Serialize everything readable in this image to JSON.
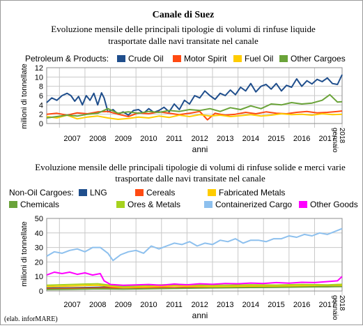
{
  "title": "Canale di Suez",
  "chart_data": [
    {
      "type": "line",
      "subtitle_lines": [
        "Evoluzione mensile delle principali tipologie di volumi di rinfuse liquide",
        "trasportate dalle navi transitate nel canale"
      ],
      "legend_title": "Petroleum & Products:",
      "xlabel": "anni",
      "ylabel": "milioni di tonnellate",
      "ylim": [
        0,
        12
      ],
      "yticks": [
        0,
        2,
        4,
        6,
        8,
        10,
        12
      ],
      "xlim": [
        2006.5,
        2018.08
      ],
      "year_ticks": [
        "2007",
        "2008",
        "2009",
        "2010",
        "2011",
        "2012",
        "2013",
        "2014",
        "2015",
        "2016",
        "2017"
      ],
      "last_tick": [
        "2018",
        "gennaio"
      ],
      "grid": true,
      "legend_position": "top",
      "series": [
        {
          "name": "Crude Oil",
          "color": "#1f4e8c",
          "x": [
            2006.5,
            2006.7,
            2006.9,
            2007.1,
            2007.3,
            2007.45,
            2007.6,
            2007.75,
            2007.9,
            2008.05,
            2008.2,
            2008.35,
            2008.5,
            2008.65,
            2008.75,
            2008.9,
            2009.1,
            2009.3,
            2009.5,
            2009.7,
            2009.9,
            2010.1,
            2010.3,
            2010.5,
            2010.7,
            2010.9,
            2011.1,
            2011.3,
            2011.5,
            2011.7,
            2011.9,
            2012.1,
            2012.3,
            2012.5,
            2012.7,
            2012.9,
            2013.1,
            2013.3,
            2013.5,
            2013.7,
            2013.9,
            2014.1,
            2014.3,
            2014.5,
            2014.7,
            2014.9,
            2015.1,
            2015.3,
            2015.5,
            2015.7,
            2015.9,
            2016.1,
            2016.3,
            2016.5,
            2016.7,
            2016.9,
            2017.1,
            2017.3,
            2017.5,
            2017.7,
            2017.9,
            2018.08
          ],
          "values": [
            4.5,
            5.5,
            5,
            6,
            6.5,
            6,
            4.8,
            5.8,
            4,
            6,
            5,
            6.5,
            4,
            6.6,
            5.5,
            2.5,
            3,
            2,
            2.5,
            1.8,
            2.8,
            3,
            2.2,
            3.2,
            2.4,
            2.8,
            3.5,
            2.5,
            4.2,
            3,
            5,
            4.2,
            6,
            5.5,
            7,
            6,
            5.2,
            6.5,
            6,
            7.2,
            6.2,
            7.8,
            7,
            8.6,
            6.8,
            8,
            8.4,
            7.4,
            8.6,
            7,
            8.2,
            7.8,
            9.6,
            8,
            9.2,
            8.5,
            9.5,
            9,
            9.8,
            8.6,
            8.4,
            10.5
          ]
        },
        {
          "name": "Motor Spirit",
          "color": "#ff4a12",
          "x": [
            2006.5,
            2006.9,
            2007.3,
            2007.7,
            2008.1,
            2008.5,
            2008.9,
            2009.3,
            2009.7,
            2010.1,
            2010.5,
            2010.9,
            2011.3,
            2011.7,
            2012.1,
            2012.5,
            2012.8,
            2013.1,
            2013.5,
            2013.9,
            2014.3,
            2014.7,
            2015.1,
            2015.5,
            2015.9,
            2016.3,
            2016.7,
            2017.1,
            2017.5,
            2017.9,
            2018.08
          ],
          "values": [
            2,
            2.2,
            1.8,
            2.3,
            2.1,
            2.5,
            2.6,
            2,
            1.5,
            2.3,
            2.1,
            2.5,
            2.2,
            1.9,
            2.2,
            2.6,
            0.8,
            2.2,
            1.8,
            2,
            2.4,
            2.1,
            2.5,
            2.2,
            2.1,
            2.4,
            2.6,
            2.3,
            2.4,
            2.6,
            2.7
          ]
        },
        {
          "name": "Fuel Oil",
          "color": "#ffcc00",
          "x": [
            2006.5,
            2006.9,
            2007.3,
            2007.7,
            2008.1,
            2008.5,
            2008.9,
            2009.3,
            2009.7,
            2010.1,
            2010.5,
            2010.9,
            2011.3,
            2011.7,
            2012.1,
            2012.5,
            2012.9,
            2013.3,
            2013.7,
            2014.1,
            2014.5,
            2014.9,
            2015.3,
            2015.7,
            2016.1,
            2016.5,
            2016.9,
            2017.3,
            2017.7,
            2018.08
          ],
          "values": [
            1.5,
            1.2,
            1.8,
            1,
            1.4,
            1.6,
            1.2,
            0.9,
            1.1,
            1.4,
            1.2,
            1.6,
            1.3,
            1.8,
            1.5,
            1.9,
            1.6,
            1.8,
            1.5,
            1.7,
            1.9,
            1.6,
            1.8,
            2.1,
            1.9,
            2,
            1.8,
            2.1,
            1.9,
            2
          ]
        },
        {
          "name": "Other Cargoes",
          "color": "#6aa339",
          "x": [
            2006.5,
            2006.9,
            2007.3,
            2007.7,
            2008.1,
            2008.5,
            2008.9,
            2009.3,
            2009.7,
            2010.1,
            2010.5,
            2010.9,
            2011.3,
            2011.7,
            2012.1,
            2012.5,
            2012.9,
            2013.3,
            2013.7,
            2014.1,
            2014.5,
            2014.9,
            2015.3,
            2015.7,
            2016.1,
            2016.5,
            2016.9,
            2017.3,
            2017.6,
            2017.9,
            2018.08
          ],
          "values": [
            1.2,
            1.5,
            1.8,
            1.6,
            2,
            2.2,
            3.2,
            2.2,
            2.5,
            2.2,
            2.6,
            2.4,
            2.8,
            2.6,
            3,
            2.8,
            3.2,
            2.6,
            3.4,
            3,
            3.8,
            3.2,
            4.2,
            4,
            4.5,
            4.2,
            4.4,
            5,
            6.2,
            4.6,
            4.7
          ]
        }
      ]
    },
    {
      "type": "line",
      "subtitle_lines": [
        "Evoluzione mensile delle principali tipologie di volumi di rinfuse solide e merci varie",
        "trasportate dalle navi transitate nel canale"
      ],
      "legend_title": "Non-Oil Cargoes:",
      "xlabel": "anni",
      "ylabel": "milioni di tonnellate",
      "ylim": [
        0,
        50
      ],
      "yticks": [
        0,
        10,
        20,
        30,
        40,
        50
      ],
      "xlim": [
        2006.5,
        2018.08
      ],
      "year_ticks": [
        "2007",
        "2008",
        "2009",
        "2010",
        "2011",
        "2012",
        "2013",
        "2014",
        "2015",
        "2016",
        "2017"
      ],
      "last_tick": [
        "2018",
        "gennaio"
      ],
      "grid": true,
      "legend_position": "top",
      "series": [
        {
          "name": "LNG",
          "color": "#1f4e8c",
          "x": [
            2006.5,
            2007.5,
            2008.5,
            2009.5,
            2010.5,
            2011.5,
            2012.5,
            2013.5,
            2014.5,
            2015.5,
            2016.5,
            2017.5,
            2018.08
          ],
          "values": [
            2,
            2.2,
            2.5,
            3,
            3.5,
            4,
            3.5,
            2.5,
            2.5,
            3,
            3,
            3,
            3.2
          ]
        },
        {
          "name": "Cereals",
          "color": "#ff4a12",
          "x": [
            2006.5,
            2007.5,
            2008.5,
            2009.5,
            2010.5,
            2011.5,
            2012.5,
            2013.5,
            2014.5,
            2015.5,
            2016.5,
            2017.5,
            2018.08
          ],
          "values": [
            1.5,
            1.8,
            2,
            2.2,
            2.5,
            2.3,
            2.6,
            2.8,
            2.7,
            3,
            3.2,
            3,
            3.5
          ]
        },
        {
          "name": "Fabricated Metals",
          "color": "#ffcc00",
          "x": [
            2006.5,
            2007.5,
            2008.5,
            2009.5,
            2010.5,
            2011.5,
            2012.5,
            2013.5,
            2014.5,
            2015.5,
            2016.5,
            2017.5,
            2018.08
          ],
          "values": [
            3,
            3.5,
            4,
            2.5,
            3,
            3.5,
            3.2,
            3,
            3.5,
            3.3,
            3.6,
            3.4,
            3.8
          ]
        },
        {
          "name": "Chemicals",
          "color": "#6aa339",
          "x": [
            2006.5,
            2007.5,
            2008.5,
            2009.5,
            2010.5,
            2011.5,
            2012.5,
            2013.5,
            2014.5,
            2015.5,
            2016.5,
            2017.5,
            2018.08
          ],
          "values": [
            1,
            1.2,
            1.5,
            1.3,
            1.6,
            1.8,
            2,
            2.2,
            2.4,
            2.5,
            2.8,
            3,
            3.1
          ]
        },
        {
          "name": "Ores & Metals",
          "color": "#a6d21e",
          "x": [
            2006.5,
            2007.5,
            2008.5,
            2009.5,
            2010.5,
            2011.5,
            2012.5,
            2013.5,
            2014.5,
            2015.5,
            2016.5,
            2017.5,
            2018.08
          ],
          "values": [
            4,
            4.5,
            5,
            3,
            4,
            4.5,
            4.2,
            4,
            4.3,
            4.1,
            4.5,
            4.2,
            4.6
          ]
        },
        {
          "name": "Containerized Cargo",
          "color": "#8dc0ee",
          "x": [
            2006.5,
            2006.8,
            2007.1,
            2007.4,
            2007.7,
            2008.0,
            2008.3,
            2008.6,
            2008.9,
            2009.1,
            2009.4,
            2009.7,
            2010.0,
            2010.3,
            2010.6,
            2010.9,
            2011.2,
            2011.5,
            2011.8,
            2012.1,
            2012.4,
            2012.7,
            2013.0,
            2013.3,
            2013.6,
            2013.9,
            2014.2,
            2014.5,
            2014.8,
            2015.1,
            2015.4,
            2015.7,
            2016.0,
            2016.3,
            2016.6,
            2016.9,
            2017.2,
            2017.5,
            2017.8,
            2018.08
          ],
          "values": [
            24,
            27,
            26,
            28,
            29,
            27,
            30,
            30,
            26,
            21,
            25,
            27,
            28,
            26,
            31,
            29,
            31,
            33,
            32,
            34,
            31,
            33,
            32,
            35,
            34,
            36,
            33,
            35,
            35,
            34,
            36,
            36,
            38,
            37,
            39,
            38,
            40,
            39,
            41,
            43
          ]
        },
        {
          "name": "Other Goods",
          "color": "#ff00ff",
          "x": [
            2006.5,
            2006.8,
            2007.1,
            2007.4,
            2007.7,
            2008.0,
            2008.3,
            2008.6,
            2008.75,
            2009.0,
            2009.5,
            2010.0,
            2010.5,
            2011.0,
            2011.5,
            2012.0,
            2012.5,
            2013.0,
            2013.5,
            2014.0,
            2014.5,
            2015.0,
            2015.5,
            2016.0,
            2016.5,
            2017.0,
            2017.5,
            2017.9,
            2018.08
          ],
          "values": [
            11,
            13,
            12,
            13,
            11.5,
            12.5,
            11,
            12,
            7,
            4.5,
            4,
            4.2,
            4.5,
            4,
            4.8,
            4.3,
            5,
            4.6,
            5.2,
            5,
            5.5,
            5.2,
            5.8,
            5.4,
            6,
            5.8,
            6.5,
            7,
            10
          ]
        }
      ]
    }
  ],
  "footer": "(elab. inforMARE)"
}
